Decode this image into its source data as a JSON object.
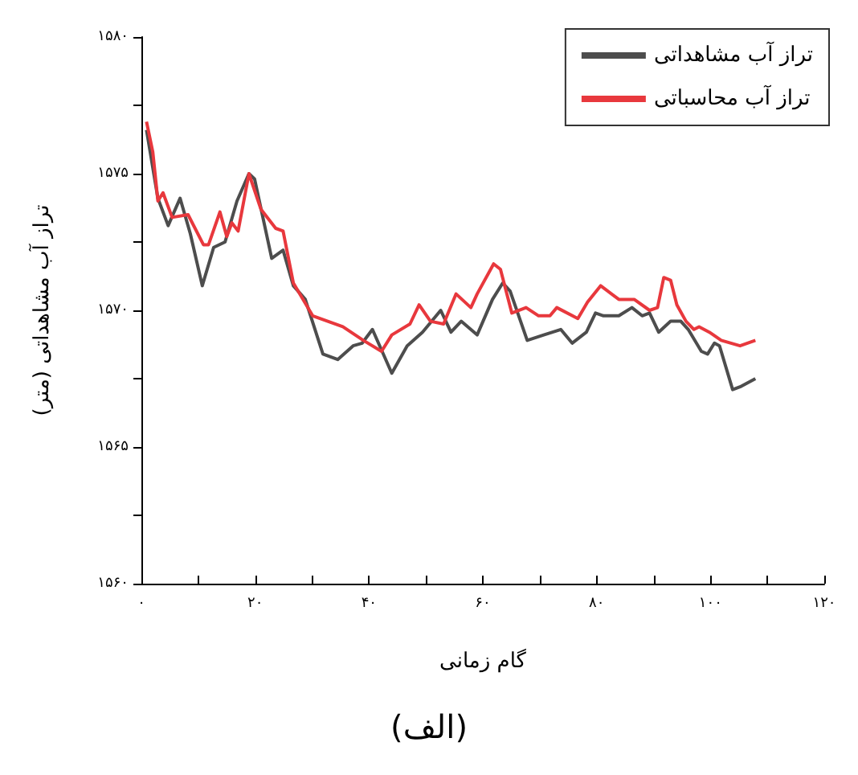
{
  "chart_data": {
    "type": "line",
    "xlabel": "گام زمانی",
    "ylabel": "تراز آب مشاهداتی (متر)",
    "annotations": [
      "(الف)"
    ],
    "xlim": [
      0,
      120
    ],
    "ylim": [
      1560,
      1580
    ],
    "xticks": [
      {
        "value": 0,
        "label": "۰"
      },
      {
        "value": 10,
        "label": null
      },
      {
        "value": 20,
        "label": "۲۰"
      },
      {
        "value": 30,
        "label": null
      },
      {
        "value": 40,
        "label": "۴۰"
      },
      {
        "value": 50,
        "label": null
      },
      {
        "value": 60,
        "label": "۶۰"
      },
      {
        "value": 70,
        "label": null
      },
      {
        "value": 80,
        "label": "۸۰"
      },
      {
        "value": 90,
        "label": null
      },
      {
        "value": 100,
        "label": "۱۰۰"
      },
      {
        "value": 110,
        "label": null
      },
      {
        "value": 120,
        "label": "۱۲۰"
      }
    ],
    "yticks": [
      {
        "value": 1560,
        "label": "۱۵۶۰"
      },
      {
        "value": 1562.5,
        "label": null
      },
      {
        "value": 1565,
        "label": "۱۵۶۵"
      },
      {
        "value": 1567.5,
        "label": null
      },
      {
        "value": 1570,
        "label": "۱۵۷۰"
      },
      {
        "value": 1572.5,
        "label": null
      },
      {
        "value": 1575,
        "label": "۱۵۷۵"
      },
      {
        "value": 1577.5,
        "label": null
      },
      {
        "value": 1580,
        "label": "۱۵۸۰"
      }
    ],
    "grid": false,
    "legend": "top right",
    "marker": "none",
    "line_style": "solid",
    "series": [
      {
        "name": "تراز آب مشاهداتی",
        "color": "#4d4d4d",
        "x": [
          0.9,
          2.9,
          4.7,
          6.8,
          8.6,
          10.7,
          12.7,
          14.7,
          16.8,
          18.9,
          19.9,
          22.9,
          24.9,
          26.7,
          28.8,
          31.9,
          34.5,
          37.2,
          38.8,
          40.6,
          44.0,
          46.7,
          49.4,
          52.6,
          54.4,
          56.2,
          59.0,
          61.7,
          63.5,
          64.8,
          67.8,
          70.7,
          73.7,
          75.7,
          78.2,
          79.8,
          81.2,
          83.9,
          86.2,
          88.0,
          89.3,
          90.9,
          93.0,
          94.8,
          96.1,
          98.4,
          99.5,
          100.7,
          101.6,
          103.9,
          105.2,
          107.9
        ],
        "values": [
          1576.6,
          1574.1,
          1573.1,
          1574.1,
          1572.8,
          1570.9,
          1572.3,
          1572.5,
          1574.0,
          1575.0,
          1574.8,
          1571.9,
          1572.2,
          1570.9,
          1570.4,
          1568.4,
          1568.2,
          1568.7,
          1568.8,
          1569.3,
          1567.7,
          1568.7,
          1569.2,
          1570.0,
          1569.2,
          1569.6,
          1569.1,
          1570.4,
          1571.0,
          1570.7,
          1568.9,
          1569.1,
          1569.3,
          1568.8,
          1569.2,
          1569.9,
          1569.8,
          1569.8,
          1570.1,
          1569.8,
          1569.9,
          1569.2,
          1569.6,
          1569.6,
          1569.3,
          1568.5,
          1568.4,
          1568.8,
          1568.7,
          1567.1,
          1567.2,
          1567.5
        ]
      },
      {
        "name": "تراز آب محاسباتی",
        "color": "#e8383d",
        "x": [
          0.9,
          2.0,
          2.9,
          3.8,
          5.4,
          8.2,
          10.9,
          11.8,
          13.8,
          15.0,
          15.9,
          17.0,
          18.9,
          21.0,
          23.6,
          24.9,
          26.7,
          30.1,
          35.4,
          39.0,
          42.2,
          44.0,
          47.2,
          48.8,
          50.8,
          53.1,
          55.3,
          57.9,
          59.0,
          61.9,
          63.1,
          65.1,
          67.6,
          69.8,
          71.8,
          73.0,
          76.7,
          78.4,
          80.7,
          83.9,
          86.6,
          89.3,
          90.7,
          91.8,
          93.0,
          94.1,
          95.7,
          97.1,
          98.0,
          99.8,
          101.9,
          105.2,
          107.9
        ],
        "values": [
          1576.9,
          1575.8,
          1574.0,
          1574.3,
          1573.4,
          1573.5,
          1572.4,
          1572.4,
          1573.6,
          1572.7,
          1573.2,
          1572.9,
          1575.0,
          1573.7,
          1573.0,
          1572.9,
          1571.0,
          1569.8,
          1569.4,
          1568.9,
          1568.5,
          1569.1,
          1569.5,
          1570.2,
          1569.6,
          1569.5,
          1570.6,
          1570.1,
          1570.6,
          1571.7,
          1571.5,
          1569.9,
          1570.1,
          1569.8,
          1569.8,
          1570.1,
          1569.7,
          1570.3,
          1570.9,
          1570.4,
          1570.4,
          1570.0,
          1570.1,
          1571.2,
          1571.1,
          1570.2,
          1569.6,
          1569.3,
          1569.4,
          1569.2,
          1568.9,
          1568.7,
          1568.9
        ]
      }
    ]
  }
}
